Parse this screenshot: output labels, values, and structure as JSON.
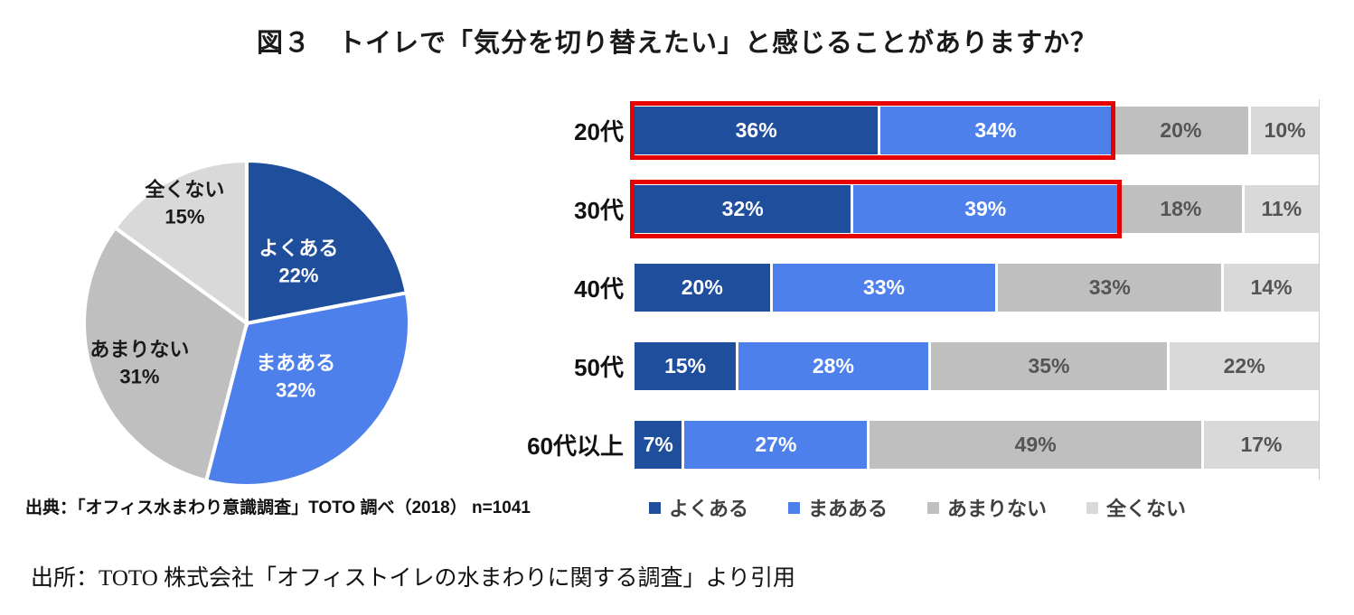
{
  "title": "図３　トイレで「気分を切り替えたい」と感じることがありますか？",
  "source_note": "出典：「オフィス水まわり意識調査」TOTO 調べ（2018） n=1041",
  "citation": "出所：TOTO 株式会社「オフィストイレの水まわりに関する調査」より引用",
  "colors": {
    "series_dark_blue": "#1f4e9c",
    "series_blue": "#4e80ec",
    "series_gray": "#bfbfbf",
    "series_light_gray": "#d9d9d9",
    "highlight_border": "#e60000",
    "text_on_blue": "#ffffff",
    "text_on_gray": "#555555"
  },
  "chart_data": [
    {
      "type": "pie",
      "labels": [
        "よくある",
        "まあある",
        "あまりない",
        "全くない"
      ],
      "values": [
        22,
        32,
        31,
        15
      ],
      "colors": [
        "#1f4e9c",
        "#4e80ec",
        "#bfbfbf",
        "#d9d9d9"
      ],
      "label_text_colors": [
        "#ffffff",
        "#ffffff",
        "#1a1a1a",
        "#1a1a1a"
      ],
      "start_angle_deg": 0,
      "direction": "clockwise",
      "data_labels": "name_and_percent_inside"
    },
    {
      "type": "bar",
      "variant": "horizontal_stacked_100pct",
      "categories": [
        "20代",
        "30代",
        "40代",
        "50代",
        "60代以上"
      ],
      "series": [
        {
          "name": "よくある",
          "color": "#1f4e9c",
          "values": [
            36,
            32,
            20,
            15,
            7
          ]
        },
        {
          "name": "まあある",
          "color": "#4e80ec",
          "values": [
            34,
            39,
            33,
            28,
            27
          ]
        },
        {
          "name": "あまりない",
          "color": "#bfbfbf",
          "values": [
            20,
            18,
            33,
            35,
            49
          ]
        },
        {
          "name": "全くない",
          "color": "#d9d9d9",
          "values": [
            10,
            11,
            14,
            22,
            17
          ]
        }
      ],
      "xlim": [
        0,
        100
      ],
      "grid": "right_edge_only",
      "legend_position": "bottom",
      "data_labels": "percent_inside",
      "highlights": [
        {
          "category": "20代",
          "series": [
            "よくある",
            "まあある"
          ],
          "style": "red-box"
        },
        {
          "category": "30代",
          "series": [
            "よくある",
            "まあある"
          ],
          "style": "red-box"
        }
      ]
    }
  ]
}
